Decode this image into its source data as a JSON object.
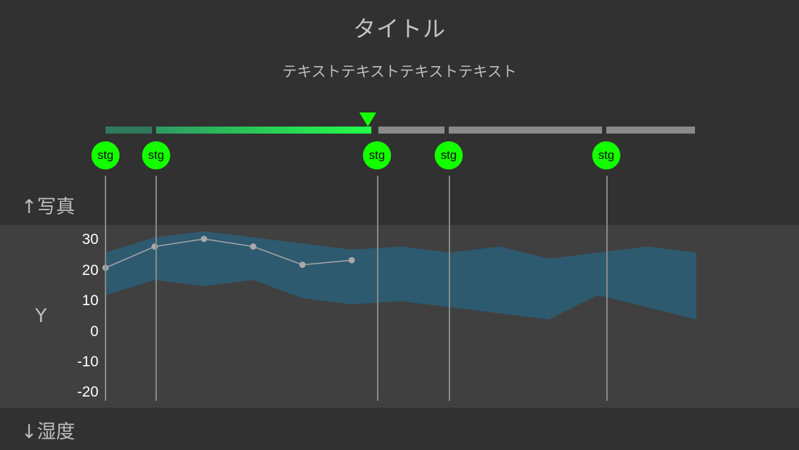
{
  "header": {
    "title": "タイトル",
    "subtitle": "テキストテキストテキストテキスト"
  },
  "progress": {
    "segments": [
      "done",
      "active",
      "pending",
      "pending",
      "pending"
    ]
  },
  "stages": [
    "stg",
    "stg",
    "stg",
    "stg",
    "stg"
  ],
  "nav": {
    "up_label": "↑写真",
    "down_label": "↓湿度"
  },
  "colors": {
    "accent": "#13ff00",
    "band": "#2e5a70",
    "line": "#a8a8a8"
  },
  "chart_data": {
    "type": "line",
    "ylabel": "Y",
    "yticks": [
      "30",
      "20",
      "10",
      "0",
      "-10",
      "-20"
    ],
    "ylim": [
      -20,
      30
    ],
    "band": {
      "upper": [
        26,
        31,
        33,
        31,
        29,
        27,
        28,
        26,
        28,
        24,
        26,
        28,
        26
      ],
      "lower": [
        12,
        17,
        15,
        17,
        11,
        9,
        10,
        8,
        6,
        4,
        12,
        8,
        4
      ]
    },
    "series": [
      {
        "values": [
          21,
          28,
          30.5,
          28,
          22,
          23.5
        ]
      }
    ]
  }
}
